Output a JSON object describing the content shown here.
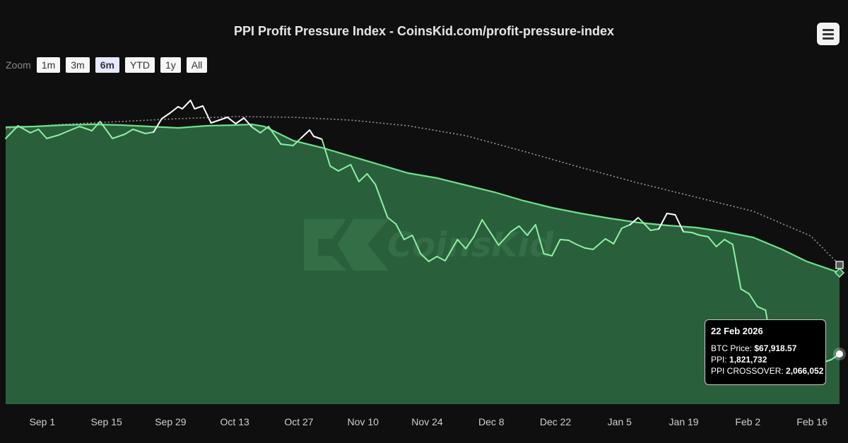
{
  "title": "PPI Profit Pressure Index - CoinsKid.com/profit-pressure-index",
  "zoom": {
    "label": "Zoom",
    "buttons": [
      "1m",
      "3m",
      "6m",
      "YTD",
      "1y",
      "All"
    ],
    "active": "6m"
  },
  "watermark": "CoinsKid",
  "icons": {
    "menu": "hamburger-menu-icon"
  },
  "colors": {
    "background": "#0f0f0f",
    "ppi_area": "#2a5f3b",
    "ppi_line": "#6ee08c",
    "btc_above": "#ffffff",
    "btc_below": "#8ef0a6",
    "crossover": "#9a9a9a"
  },
  "tooltip": {
    "date": "22 Feb 2026",
    "rows": [
      {
        "label": "BTC Price: ",
        "value": "$67,918.57"
      },
      {
        "label": "PPI: ",
        "value": "1,821,732"
      },
      {
        "label": "PPI CROSSOVER: ",
        "value": "2,066,052"
      }
    ]
  },
  "chart_data": {
    "type": "area",
    "title": "PPI Profit Pressure Index - CoinsKid.com/profit-pressure-index",
    "x_tick_labels": [
      "Sep 1",
      "Sep 15",
      "Sep 29",
      "Oct 13",
      "Oct 27",
      "Nov 10",
      "Nov 24",
      "Dec 8",
      "Dec 22",
      "Jan 5",
      "Jan 19",
      "Feb 2",
      "Feb 16"
    ],
    "x_range": [
      "2025-08-24",
      "2026-02-22"
    ],
    "y_axis": "hidden",
    "series": [
      {
        "style": "area",
        "points": [
          [
            0,
            180
          ],
          [
            7,
            179
          ],
          [
            14,
            177
          ],
          [
            21,
            176
          ],
          [
            28,
            177
          ],
          [
            35,
            179
          ],
          [
            42,
            181
          ],
          [
            49,
            178
          ],
          [
            56,
            177
          ],
          [
            60,
            176
          ],
          [
            63,
            179
          ],
          [
            70,
            199
          ],
          [
            77,
            209
          ],
          [
            84,
            221
          ],
          [
            91,
            233
          ],
          [
            98,
            245
          ],
          [
            105,
            252
          ],
          [
            112,
            262
          ],
          [
            119,
            272
          ],
          [
            126,
            284
          ],
          [
            133,
            294
          ],
          [
            140,
            302
          ],
          [
            147,
            309
          ],
          [
            154,
            315
          ],
          [
            161,
            319
          ],
          [
            168,
            322
          ],
          [
            175,
            328
          ],
          [
            182,
            336
          ],
          [
            189,
            353
          ],
          [
            195,
            370
          ],
          [
            203,
            386
          ]
        ]
      },
      {
        "style": "line-colored-by-position",
        "points": [
          [
            0,
            196
          ],
          [
            3,
            178
          ],
          [
            6,
            188
          ],
          [
            8,
            183
          ],
          [
            10,
            196
          ],
          [
            13,
            191
          ],
          [
            15,
            186
          ],
          [
            18,
            179
          ],
          [
            21,
            185
          ],
          [
            23,
            172
          ],
          [
            26,
            196
          ],
          [
            29,
            190
          ],
          [
            31,
            183
          ],
          [
            34,
            189
          ],
          [
            36,
            187
          ],
          [
            38,
            168
          ],
          [
            40,
            160
          ],
          [
            42,
            151
          ],
          [
            43,
            154
          ],
          [
            45,
            142
          ],
          [
            46,
            154
          ],
          [
            48,
            150
          ],
          [
            50,
            174
          ],
          [
            52,
            170
          ],
          [
            54,
            166
          ],
          [
            56,
            175
          ],
          [
            58,
            167
          ],
          [
            60,
            180
          ],
          [
            62,
            188
          ],
          [
            64,
            179
          ],
          [
            67,
            204
          ],
          [
            70,
            206
          ],
          [
            72,
            195
          ],
          [
            74,
            184
          ],
          [
            75,
            193
          ],
          [
            77,
            197
          ],
          [
            79,
            235
          ],
          [
            81,
            242
          ],
          [
            84,
            233
          ],
          [
            86,
            257
          ],
          [
            88,
            246
          ],
          [
            90,
            261
          ],
          [
            93,
            308
          ],
          [
            95,
            317
          ],
          [
            97,
            339
          ],
          [
            99,
            333
          ],
          [
            101,
            359
          ],
          [
            103,
            370
          ],
          [
            105,
            363
          ],
          [
            107,
            369
          ],
          [
            110,
            339
          ],
          [
            112,
            352
          ],
          [
            114,
            335
          ],
          [
            116,
            311
          ],
          [
            118,
            329
          ],
          [
            120,
            347
          ],
          [
            123,
            328
          ],
          [
            125,
            320
          ],
          [
            127,
            333
          ],
          [
            129,
            318
          ],
          [
            131,
            359
          ],
          [
            133,
            362
          ],
          [
            135,
            339
          ],
          [
            137,
            340
          ],
          [
            139,
            346
          ],
          [
            141,
            351
          ],
          [
            143,
            353
          ],
          [
            146,
            338
          ],
          [
            148,
            345
          ],
          [
            150,
            323
          ],
          [
            152,
            318
          ],
          [
            154,
            308
          ],
          [
            157,
            326
          ],
          [
            159,
            324
          ],
          [
            161,
            302
          ],
          [
            163,
            304
          ],
          [
            165,
            328
          ],
          [
            167,
            329
          ],
          [
            169,
            333
          ],
          [
            171,
            335
          ],
          [
            173,
            349
          ],
          [
            175,
            339
          ],
          [
            177,
            346
          ],
          [
            179,
            409
          ],
          [
            181,
            416
          ],
          [
            183,
            434
          ],
          [
            185,
            439
          ],
          [
            187,
            507
          ],
          [
            189,
            486
          ],
          [
            191,
            499
          ],
          [
            193,
            498
          ],
          [
            195,
            501
          ],
          [
            197,
            505
          ],
          [
            199,
            513
          ],
          [
            201,
            509
          ],
          [
            203,
            501
          ]
        ]
      },
      {
        "style": "dotted",
        "points": [
          [
            0,
            182
          ],
          [
            14,
            176
          ],
          [
            28,
            172
          ],
          [
            42,
            168
          ],
          [
            56,
            165
          ],
          [
            70,
            166
          ],
          [
            84,
            170
          ],
          [
            98,
            178
          ],
          [
            112,
            192
          ],
          [
            126,
            214
          ],
          [
            140,
            237
          ],
          [
            154,
            259
          ],
          [
            168,
            279
          ],
          [
            182,
            299
          ],
          [
            196,
            334
          ],
          [
            203,
            375
          ]
        ]
      }
    ],
    "last_point": {
      "date": "22 Feb 2026",
      "btc_price": 67918.57,
      "ppi": 1821732,
      "ppi_crossover": 2066052
    }
  }
}
